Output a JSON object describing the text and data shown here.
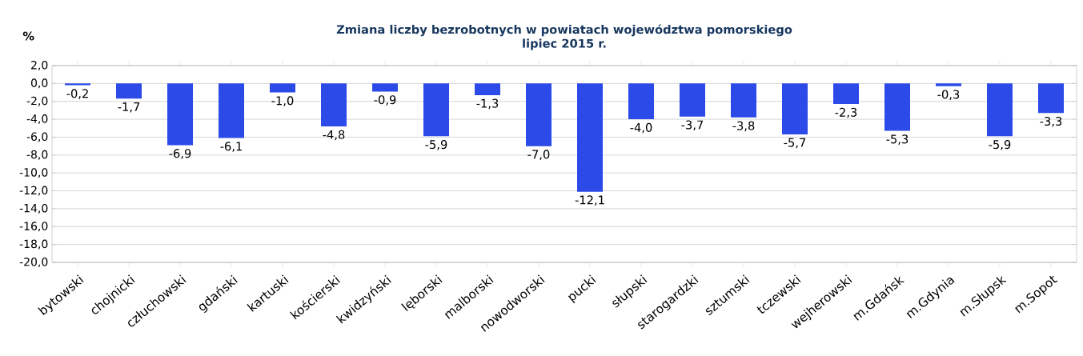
{
  "chart_data": {
    "type": "bar",
    "title": "Zmiana liczby bezrobotnych  w  powiatach województwa pomorskiego",
    "subtitle": "lipiec 2015 r.",
    "ylabel": "%",
    "categories": [
      "bytowski",
      "chojnicki",
      "człuchowski",
      "gdański",
      "kartuski",
      "kościerski",
      "kwidzyński",
      "lęborski",
      "malborski",
      "nowodworski",
      "pucki",
      "słupski",
      "starogardzki",
      "sztumski",
      "tczewski",
      "wejherowski",
      "m.Gdańsk",
      "m.Gdynia",
      "m.Słupsk",
      "m.Sopot"
    ],
    "values": [
      -0.2,
      -1.7,
      -6.9,
      -6.1,
      -1.0,
      -4.8,
      -0.9,
      -5.9,
      -1.3,
      -7.0,
      -12.1,
      -4.0,
      -3.7,
      -3.8,
      -5.7,
      -2.3,
      -5.3,
      -0.3,
      -5.9,
      -3.3
    ],
    "value_labels": [
      "-0,2",
      "-1,7",
      "-6,9",
      "-6,1",
      "-1,0",
      "-4,8",
      "-0,9",
      "-5,9",
      "-1,3",
      "-7,0",
      "-12,1",
      "-4,0",
      "-3,7",
      "-3,8",
      "-5,7",
      "-2,3",
      "-5,3",
      "-0,3",
      "-5,9",
      "-3,3"
    ],
    "color": "#2b4ae8",
    "ylim": [
      -20,
      2
    ],
    "yticks": [
      {
        "value": 2,
        "label": "2,0"
      },
      {
        "value": 0,
        "label": "0,0"
      },
      {
        "value": -2,
        "label": "-2,0"
      },
      {
        "value": -4,
        "label": "-4,0"
      },
      {
        "value": -6,
        "label": "-6,0"
      },
      {
        "value": -8,
        "label": "-8,0"
      },
      {
        "value": -10,
        "label": "-10,0"
      },
      {
        "value": -12,
        "label": "-12,0"
      },
      {
        "value": -14,
        "label": "-14,0"
      },
      {
        "value": -16,
        "label": "-16,0"
      },
      {
        "value": -18,
        "label": "-18,0"
      },
      {
        "value": -20,
        "label": "-20,0"
      }
    ],
    "grid": "y"
  }
}
